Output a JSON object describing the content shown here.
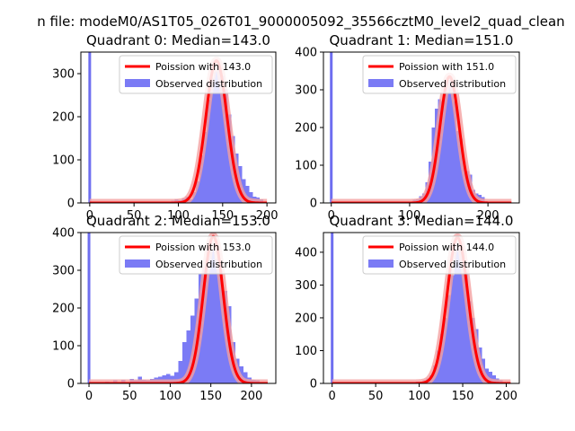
{
  "suptitle": "n file: modeM0/AS1T05_026T01_9000005092_35566cztM0_level2_quad_clean",
  "colors": {
    "hist": "#7b7bf5",
    "spike": "#6e6ef0",
    "poisson": "#ff0000",
    "poisson_glow": "#f4a0a0",
    "axis": "#000000",
    "text": "#000000",
    "background": "#ffffff"
  },
  "chart_data": [
    {
      "type": "bar",
      "title": "Quadrant 0: Median=143.0",
      "legend_position": "upper-right",
      "legend": [
        "Poission with 143.0",
        "Observed distribution"
      ],
      "xlim": [
        -10,
        210
      ],
      "ylim": [
        0,
        350
      ],
      "xticks": [
        0,
        50,
        100,
        150,
        200
      ],
      "yticks": [
        0,
        100,
        200,
        300
      ],
      "spike": {
        "x": 0,
        "height": 350
      },
      "histogram": {
        "bin_width": 4,
        "bins": [
          [
            88,
            3
          ],
          [
            92,
            5
          ],
          [
            96,
            8
          ],
          [
            100,
            6
          ],
          [
            104,
            10
          ],
          [
            108,
            15
          ],
          [
            112,
            8
          ],
          [
            116,
            25
          ],
          [
            120,
            50
          ],
          [
            124,
            110
          ],
          [
            128,
            165
          ],
          [
            132,
            240
          ],
          [
            136,
            290
          ],
          [
            140,
            305
          ],
          [
            144,
            320
          ],
          [
            148,
            295
          ],
          [
            152,
            265
          ],
          [
            156,
            205
          ],
          [
            160,
            155
          ],
          [
            164,
            115
          ],
          [
            168,
            85
          ],
          [
            172,
            55
          ],
          [
            176,
            40
          ],
          [
            180,
            25
          ],
          [
            184,
            15
          ],
          [
            188,
            12
          ],
          [
            192,
            8
          ]
        ]
      },
      "poisson": {
        "mean": 143.0,
        "peak": 330,
        "x_from": 0,
        "x_to": 200
      }
    },
    {
      "type": "bar",
      "title": "Quadrant 1: Median=151.0",
      "legend_position": "upper-right",
      "legend": [
        "Poission with 151.0",
        "Observed distribution"
      ],
      "xlim": [
        -10,
        240
      ],
      "ylim": [
        0,
        400
      ],
      "xticks": [
        0,
        100,
        200
      ],
      "yticks": [
        0,
        100,
        200,
        300,
        400
      ],
      "spike": {
        "x": 0,
        "height": 400
      },
      "histogram": {
        "bin_width": 4,
        "bins": [
          [
            96,
            2
          ],
          [
            100,
            4
          ],
          [
            104,
            8
          ],
          [
            108,
            10
          ],
          [
            112,
            18
          ],
          [
            116,
            25
          ],
          [
            120,
            55
          ],
          [
            124,
            110
          ],
          [
            128,
            200
          ],
          [
            132,
            250
          ],
          [
            136,
            275
          ],
          [
            140,
            270
          ],
          [
            144,
            310
          ],
          [
            148,
            330
          ],
          [
            152,
            325
          ],
          [
            156,
            270
          ],
          [
            160,
            190
          ],
          [
            164,
            170
          ],
          [
            168,
            110
          ],
          [
            172,
            85
          ],
          [
            176,
            75
          ],
          [
            180,
            35
          ],
          [
            184,
            25
          ],
          [
            188,
            22
          ],
          [
            192,
            15
          ],
          [
            196,
            5
          ]
        ]
      },
      "poisson": {
        "mean": 151.0,
        "peak": 335,
        "x_from": 0,
        "x_to": 230
      }
    },
    {
      "type": "bar",
      "title": "Quadrant 2: Median=153.0",
      "legend_position": "upper-right",
      "legend": [
        "Poission with 153.0",
        "Observed distribution"
      ],
      "xlim": [
        -10,
        230
      ],
      "ylim": [
        0,
        400
      ],
      "xticks": [
        0,
        50,
        100,
        150,
        200
      ],
      "yticks": [
        0,
        100,
        200,
        300,
        400
      ],
      "spike": {
        "x": 0,
        "height": 400
      },
      "histogram": {
        "bin_width": 5,
        "bins": [
          [
            20,
            5
          ],
          [
            30,
            8
          ],
          [
            40,
            10
          ],
          [
            50,
            12
          ],
          [
            55,
            8
          ],
          [
            60,
            18
          ],
          [
            65,
            10
          ],
          [
            70,
            8
          ],
          [
            75,
            12
          ],
          [
            80,
            15
          ],
          [
            85,
            18
          ],
          [
            90,
            22
          ],
          [
            95,
            25
          ],
          [
            100,
            20
          ],
          [
            105,
            30
          ],
          [
            110,
            60
          ],
          [
            115,
            110
          ],
          [
            120,
            140
          ],
          [
            125,
            180
          ],
          [
            130,
            225
          ],
          [
            135,
            290
          ],
          [
            140,
            310
          ],
          [
            145,
            360
          ],
          [
            150,
            355
          ],
          [
            155,
            330
          ],
          [
            160,
            300
          ],
          [
            165,
            245
          ],
          [
            170,
            205
          ],
          [
            175,
            110
          ],
          [
            180,
            65
          ],
          [
            185,
            45
          ],
          [
            190,
            30
          ],
          [
            195,
            15
          ],
          [
            200,
            10
          ],
          [
            205,
            8
          ]
        ]
      },
      "poisson": {
        "mean": 153.0,
        "peak": 390,
        "x_from": 0,
        "x_to": 220
      }
    },
    {
      "type": "bar",
      "title": "Quadrant 3: Median=144.0",
      "legend_position": "upper-right",
      "legend": [
        "Poission with 144.0",
        "Observed distribution"
      ],
      "xlim": [
        -10,
        215
      ],
      "ylim": [
        0,
        460
      ],
      "xticks": [
        0,
        50,
        100,
        150,
        200
      ],
      "yticks": [
        0,
        100,
        200,
        300,
        400
      ],
      "spike": {
        "x": 0,
        "height": 460
      },
      "histogram": {
        "bin_width": 4,
        "bins": [
          [
            88,
            3
          ],
          [
            96,
            5
          ],
          [
            104,
            10
          ],
          [
            108,
            15
          ],
          [
            112,
            25
          ],
          [
            116,
            55
          ],
          [
            120,
            100
          ],
          [
            124,
            150
          ],
          [
            128,
            200
          ],
          [
            132,
            270
          ],
          [
            136,
            330
          ],
          [
            140,
            430
          ],
          [
            144,
            420
          ],
          [
            148,
            400
          ],
          [
            152,
            340
          ],
          [
            156,
            250
          ],
          [
            160,
            200
          ],
          [
            164,
            165
          ],
          [
            168,
            110
          ],
          [
            172,
            75
          ],
          [
            176,
            45
          ],
          [
            180,
            35
          ],
          [
            184,
            25
          ],
          [
            188,
            15
          ],
          [
            192,
            10
          ]
        ]
      },
      "poisson": {
        "mean": 144.0,
        "peak": 445,
        "x_from": 0,
        "x_to": 205
      }
    }
  ]
}
